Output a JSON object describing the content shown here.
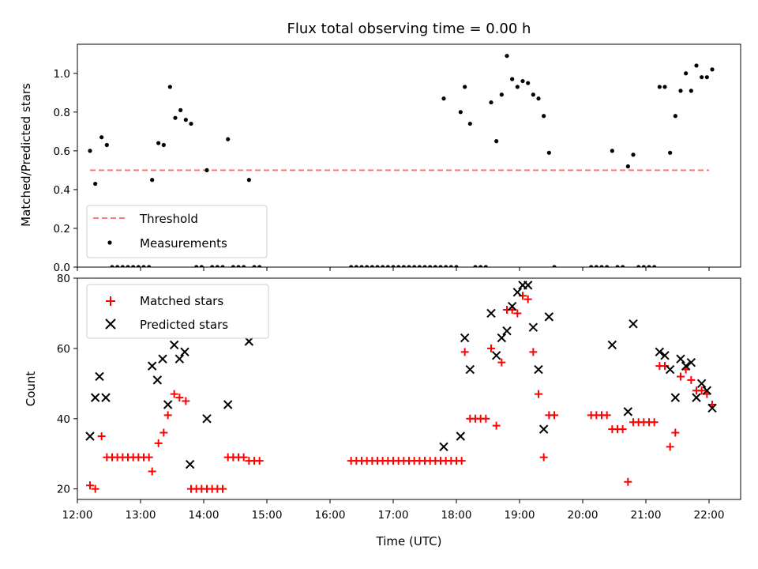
{
  "chart_data": [
    {
      "type": "scatter",
      "title": "Flux total observing time = 0.00 h",
      "ylabel": "Matched/Predicted stars",
      "xlabel": "",
      "xlim": [
        "12:00",
        "22:30"
      ],
      "ylim": [
        0,
        1.15
      ],
      "yticks": [
        "0.0",
        "0.2",
        "0.4",
        "0.6",
        "0.8",
        "1.0"
      ],
      "threshold": {
        "name": "Threshold",
        "value": 0.5,
        "x_start": "12:12",
        "x_end": "22:00",
        "color": "#ff7777"
      },
      "legend": [
        "Threshold",
        "Measurements"
      ],
      "legend_position": "lower-left",
      "series": [
        {
          "name": "Measurements",
          "color": "#000000",
          "points": [
            [
              "12:12",
              0.6
            ],
            [
              "12:17",
              0.43
            ],
            [
              "12:23",
              0.67
            ],
            [
              "12:28",
              0.63
            ],
            [
              "12:33",
              0.0
            ],
            [
              "12:38",
              0.0
            ],
            [
              "12:43",
              0.0
            ],
            [
              "12:48",
              0.0
            ],
            [
              "12:53",
              0.0
            ],
            [
              "12:58",
              0.0
            ],
            [
              "13:03",
              0.0
            ],
            [
              "13:08",
              0.0
            ],
            [
              "13:11",
              0.45
            ],
            [
              "13:17",
              0.64
            ],
            [
              "13:22",
              0.63
            ],
            [
              "13:28",
              0.93
            ],
            [
              "13:33",
              0.77
            ],
            [
              "13:38",
              0.81
            ],
            [
              "13:43",
              0.76
            ],
            [
              "13:48",
              0.74
            ],
            [
              "13:53",
              0.0
            ],
            [
              "13:58",
              0.0
            ],
            [
              "14:03",
              0.5
            ],
            [
              "14:08",
              0.0
            ],
            [
              "14:13",
              0.0
            ],
            [
              "14:18",
              0.0
            ],
            [
              "14:23",
              0.66
            ],
            [
              "14:28",
              0.0
            ],
            [
              "14:33",
              0.0
            ],
            [
              "14:38",
              0.0
            ],
            [
              "14:43",
              0.45
            ],
            [
              "14:48",
              0.0
            ],
            [
              "14:53",
              0.0
            ],
            [
              "16:20",
              0.0
            ],
            [
              "16:25",
              0.0
            ],
            [
              "16:30",
              0.0
            ],
            [
              "16:35",
              0.0
            ],
            [
              "16:40",
              0.0
            ],
            [
              "16:45",
              0.0
            ],
            [
              "16:50",
              0.0
            ],
            [
              "16:55",
              0.0
            ],
            [
              "17:00",
              0.0
            ],
            [
              "17:05",
              0.0
            ],
            [
              "17:10",
              0.0
            ],
            [
              "17:15",
              0.0
            ],
            [
              "17:20",
              0.0
            ],
            [
              "17:25",
              0.0
            ],
            [
              "17:30",
              0.0
            ],
            [
              "17:35",
              0.0
            ],
            [
              "17:40",
              0.0
            ],
            [
              "17:45",
              0.0
            ],
            [
              "17:50",
              0.0
            ],
            [
              "17:55",
              0.0
            ],
            [
              "18:00",
              0.0
            ],
            [
              "17:48",
              0.87
            ],
            [
              "18:04",
              0.8
            ],
            [
              "18:08",
              0.93
            ],
            [
              "18:13",
              0.74
            ],
            [
              "18:18",
              0.0
            ],
            [
              "18:23",
              0.0
            ],
            [
              "18:28",
              0.0
            ],
            [
              "18:33",
              0.85
            ],
            [
              "18:38",
              0.65
            ],
            [
              "18:43",
              0.89
            ],
            [
              "18:48",
              1.09
            ],
            [
              "18:53",
              0.97
            ],
            [
              "18:58",
              0.93
            ],
            [
              "19:03",
              0.96
            ],
            [
              "19:08",
              0.95
            ],
            [
              "19:13",
              0.89
            ],
            [
              "19:18",
              0.87
            ],
            [
              "19:23",
              0.78
            ],
            [
              "19:28",
              0.59
            ],
            [
              "19:33",
              0.0
            ],
            [
              "20:08",
              0.0
            ],
            [
              "20:13",
              0.0
            ],
            [
              "20:18",
              0.0
            ],
            [
              "20:23",
              0.0
            ],
            [
              "20:28",
              0.6
            ],
            [
              "20:33",
              0.0
            ],
            [
              "20:38",
              0.0
            ],
            [
              "20:43",
              0.52
            ],
            [
              "20:48",
              0.58
            ],
            [
              "20:53",
              0.0
            ],
            [
              "20:58",
              0.0
            ],
            [
              "21:03",
              0.0
            ],
            [
              "21:08",
              0.0
            ],
            [
              "21:13",
              0.93
            ],
            [
              "21:18",
              0.93
            ],
            [
              "21:23",
              0.59
            ],
            [
              "21:28",
              0.78
            ],
            [
              "21:33",
              0.91
            ],
            [
              "21:38",
              1.0
            ],
            [
              "21:43",
              0.91
            ],
            [
              "21:48",
              1.04
            ],
            [
              "21:53",
              0.98
            ],
            [
              "21:58",
              0.98
            ],
            [
              "22:03",
              1.02
            ]
          ]
        }
      ]
    },
    {
      "type": "scatter",
      "title": "",
      "ylabel": "Count",
      "xlabel": "Time (UTC)",
      "xlim": [
        "12:00",
        "22:30"
      ],
      "ylim": [
        17,
        80
      ],
      "yticks": [
        "20",
        "40",
        "60",
        "80"
      ],
      "xticks": [
        "12:00",
        "13:00",
        "14:00",
        "15:00",
        "16:00",
        "17:00",
        "18:00",
        "19:00",
        "20:00",
        "21:00",
        "22:00"
      ],
      "legend": [
        "Matched stars",
        "Predicted stars"
      ],
      "legend_position": "upper-left",
      "series": [
        {
          "name": "Matched stars",
          "marker": "plus",
          "color": "#ff0000",
          "points": [
            [
              "12:12",
              21
            ],
            [
              "12:17",
              20
            ],
            [
              "12:23",
              35
            ],
            [
              "12:28",
              29
            ],
            [
              "12:33",
              29
            ],
            [
              "12:38",
              29
            ],
            [
              "12:43",
              29
            ],
            [
              "12:48",
              29
            ],
            [
              "12:53",
              29
            ],
            [
              "12:58",
              29
            ],
            [
              "13:03",
              29
            ],
            [
              "13:08",
              29
            ],
            [
              "13:11",
              25
            ],
            [
              "13:17",
              33
            ],
            [
              "13:22",
              36
            ],
            [
              "13:26",
              41
            ],
            [
              "13:32",
              47
            ],
            [
              "13:37",
              46
            ],
            [
              "13:43",
              45
            ],
            [
              "13:48",
              20
            ],
            [
              "13:53",
              20
            ],
            [
              "13:58",
              20
            ],
            [
              "14:03",
              20
            ],
            [
              "14:08",
              20
            ],
            [
              "14:13",
              20
            ],
            [
              "14:18",
              20
            ],
            [
              "14:23",
              29
            ],
            [
              "14:28",
              29
            ],
            [
              "14:33",
              29
            ],
            [
              "14:38",
              29
            ],
            [
              "14:43",
              28
            ],
            [
              "14:48",
              28
            ],
            [
              "14:53",
              28
            ],
            [
              "16:20",
              28
            ],
            [
              "16:25",
              28
            ],
            [
              "16:30",
              28
            ],
            [
              "16:35",
              28
            ],
            [
              "16:40",
              28
            ],
            [
              "16:45",
              28
            ],
            [
              "16:50",
              28
            ],
            [
              "16:55",
              28
            ],
            [
              "17:00",
              28
            ],
            [
              "17:05",
              28
            ],
            [
              "17:10",
              28
            ],
            [
              "17:15",
              28
            ],
            [
              "17:20",
              28
            ],
            [
              "17:25",
              28
            ],
            [
              "17:30",
              28
            ],
            [
              "17:35",
              28
            ],
            [
              "17:40",
              28
            ],
            [
              "17:45",
              28
            ],
            [
              "17:50",
              28
            ],
            [
              "17:55",
              28
            ],
            [
              "18:00",
              28
            ],
            [
              "18:05",
              28
            ],
            [
              "18:08",
              59
            ],
            [
              "18:13",
              40
            ],
            [
              "18:18",
              40
            ],
            [
              "18:23",
              40
            ],
            [
              "18:28",
              40
            ],
            [
              "18:33",
              60
            ],
            [
              "18:38",
              38
            ],
            [
              "18:43",
              56
            ],
            [
              "18:48",
              71
            ],
            [
              "18:53",
              71
            ],
            [
              "18:58",
              70
            ],
            [
              "19:03",
              75
            ],
            [
              "19:08",
              74
            ],
            [
              "19:13",
              59
            ],
            [
              "19:18",
              47
            ],
            [
              "19:23",
              29
            ],
            [
              "19:28",
              41
            ],
            [
              "19:33",
              41
            ],
            [
              "20:08",
              41
            ],
            [
              "20:13",
              41
            ],
            [
              "20:18",
              41
            ],
            [
              "20:23",
              41
            ],
            [
              "20:28",
              37
            ],
            [
              "20:33",
              37
            ],
            [
              "20:38",
              37
            ],
            [
              "20:43",
              22
            ],
            [
              "20:48",
              39
            ],
            [
              "20:53",
              39
            ],
            [
              "20:58",
              39
            ],
            [
              "21:03",
              39
            ],
            [
              "21:08",
              39
            ],
            [
              "21:13",
              55
            ],
            [
              "21:18",
              55
            ],
            [
              "21:23",
              32
            ],
            [
              "21:28",
              36
            ],
            [
              "21:33",
              52
            ],
            [
              "21:38",
              54
            ],
            [
              "21:43",
              51
            ],
            [
              "21:48",
              48
            ],
            [
              "21:53",
              48
            ],
            [
              "21:58",
              47
            ],
            [
              "22:03",
              44
            ]
          ]
        },
        {
          "name": "Predicted stars",
          "marker": "x",
          "color": "#000000",
          "points": [
            [
              "12:12",
              35
            ],
            [
              "12:17",
              46
            ],
            [
              "12:21",
              52
            ],
            [
              "12:27",
              46
            ],
            [
              "13:11",
              55
            ],
            [
              "13:16",
              51
            ],
            [
              "13:21",
              57
            ],
            [
              "13:26",
              44
            ],
            [
              "13:32",
              61
            ],
            [
              "13:37",
              57
            ],
            [
              "13:42",
              59
            ],
            [
              "13:47",
              27
            ],
            [
              "14:03",
              40
            ],
            [
              "14:23",
              44
            ],
            [
              "14:43",
              62
            ],
            [
              "17:48",
              32
            ],
            [
              "18:04",
              35
            ],
            [
              "18:08",
              63
            ],
            [
              "18:13",
              54
            ],
            [
              "18:33",
              70
            ],
            [
              "18:38",
              58
            ],
            [
              "18:43",
              63
            ],
            [
              "18:48",
              65
            ],
            [
              "18:53",
              72
            ],
            [
              "18:58",
              76
            ],
            [
              "19:03",
              78
            ],
            [
              "19:08",
              78
            ],
            [
              "19:13",
              66
            ],
            [
              "19:18",
              54
            ],
            [
              "19:23",
              37
            ],
            [
              "19:28",
              69
            ],
            [
              "20:28",
              61
            ],
            [
              "20:43",
              42
            ],
            [
              "20:48",
              67
            ],
            [
              "21:13",
              59
            ],
            [
              "21:18",
              58
            ],
            [
              "21:23",
              54
            ],
            [
              "21:28",
              46
            ],
            [
              "21:33",
              57
            ],
            [
              "21:38",
              55
            ],
            [
              "21:43",
              56
            ],
            [
              "21:48",
              46
            ],
            [
              "21:53",
              50
            ],
            [
              "21:58",
              48
            ],
            [
              "22:03",
              43
            ]
          ]
        }
      ]
    }
  ]
}
